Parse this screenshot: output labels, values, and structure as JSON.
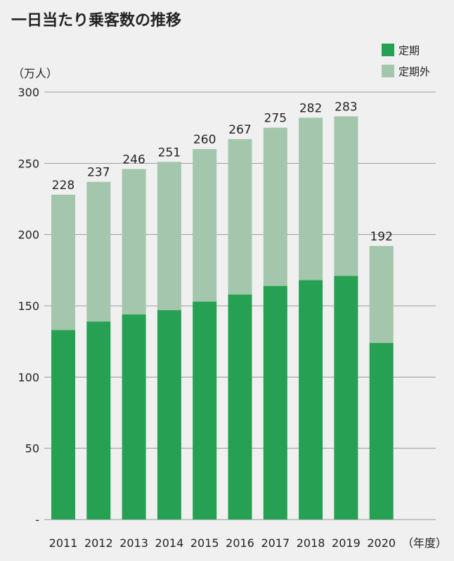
{
  "chart_data": {
    "type": "bar",
    "stacked": true,
    "title": "一日当たり乗客数の推移",
    "ylabel": "（万人）",
    "xlabel_unit": "（年度）",
    "categories": [
      "2011",
      "2012",
      "2013",
      "2014",
      "2015",
      "2016",
      "2017",
      "2018",
      "2019",
      "2020"
    ],
    "series": [
      {
        "name": "定期",
        "color": "#26a153",
        "values": [
          133,
          139,
          144,
          147,
          153,
          158,
          164,
          168,
          171,
          124
        ]
      },
      {
        "name": "定期外",
        "color": "#a4c6ac",
        "values": [
          95,
          98,
          102,
          104,
          107,
          109,
          111,
          114,
          112,
          68
        ]
      }
    ],
    "totals": [
      "228",
      "237",
      "246",
      "251",
      "260",
      "267",
      "275",
      "282",
      "283",
      "192"
    ],
    "ylim": [
      0,
      300
    ],
    "yticks": [
      "-",
      "50",
      "100",
      "150",
      "200",
      "250",
      "300"
    ],
    "grid": true,
    "legend_position": "top-right"
  }
}
